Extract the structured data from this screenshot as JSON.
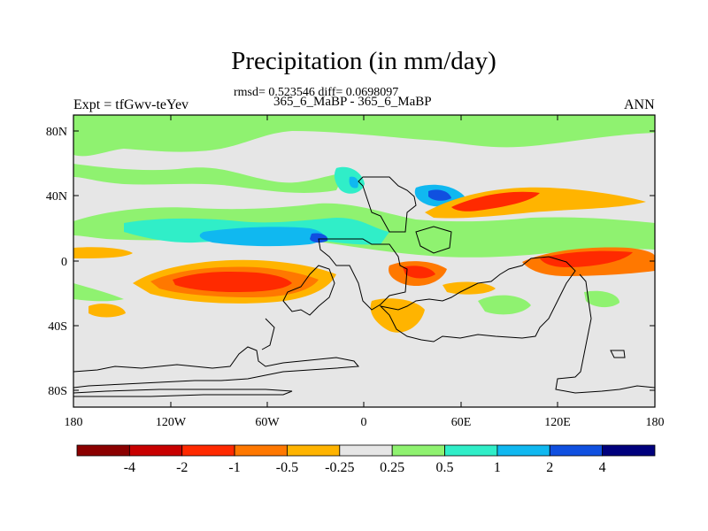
{
  "title": "Precipitation (in mm/day)",
  "stats": "rmsd= 0.523546 diff= 0.0698097",
  "cases": "365_6_MaBP - 365_6_MaBP",
  "left_label": "Expt = tfGwv-teYev",
  "right_label": "ANN",
  "y_ticks": [
    "80N",
    "40N",
    "0",
    "40S",
    "80S"
  ],
  "x_ticks": [
    "180",
    "120W",
    "60W",
    "0",
    "60E",
    "120E",
    "180"
  ],
  "colorbar": {
    "labels": [
      "-4",
      "-2",
      "-1",
      "-0.5",
      "-0.25",
      "0.25",
      "0.5",
      "1",
      "2",
      "4"
    ],
    "colors": [
      "#8b0000",
      "#c80000",
      "#ff2a00",
      "#ff7800",
      "#ffb400",
      "#e6e6e6",
      "#8ff270",
      "#30eec8",
      "#10b8f0",
      "#1050e0",
      "#00007d"
    ]
  }
}
